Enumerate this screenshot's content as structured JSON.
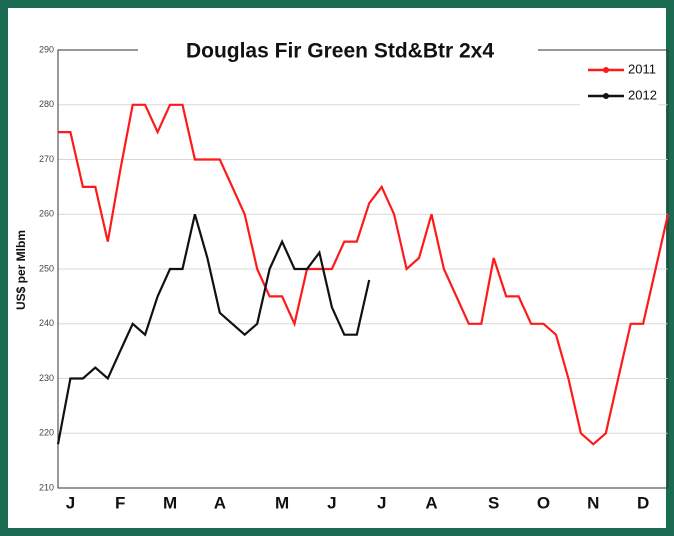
{
  "chart_data": {
    "type": "line",
    "title": "Douglas Fir Green Std&Btr 2x4",
    "y_label": "US$ per Mlbm",
    "categories": [
      null,
      "J",
      null,
      null,
      null,
      "F",
      null,
      null,
      null,
      "M",
      null,
      null,
      null,
      "A",
      null,
      null,
      null,
      null,
      "M",
      null,
      null,
      null,
      "J",
      null,
      null,
      null,
      "J",
      null,
      null,
      null,
      "A",
      null,
      null,
      null,
      null,
      "S",
      null,
      null,
      null,
      "O",
      null,
      null,
      null,
      "N",
      null,
      null,
      null,
      "D",
      null,
      null
    ],
    "series": [
      {
        "name": "2011",
        "color": "#ff1a1a",
        "values": [
          275,
          275,
          265,
          265,
          255,
          268,
          280,
          280,
          275,
          280,
          280,
          270,
          270,
          270,
          265,
          260,
          250,
          245,
          245,
          240,
          250,
          250,
          250,
          255,
          255,
          262,
          265,
          260,
          250,
          252,
          260,
          250,
          245,
          240,
          240,
          252,
          245,
          245,
          240,
          240,
          238,
          230,
          220,
          218,
          220,
          230,
          240,
          240,
          250,
          260
        ]
      },
      {
        "name": "2012",
        "color": "#111111",
        "values": [
          218,
          230,
          230,
          232,
          230,
          235,
          240,
          238,
          245,
          250,
          250,
          260,
          252,
          242,
          240,
          238,
          240,
          250,
          255,
          250,
          250,
          253,
          243,
          238,
          238,
          248,
          null,
          null,
          null,
          null,
          null,
          null,
          null,
          null,
          null,
          null,
          null,
          null,
          null,
          null,
          null,
          null,
          null,
          null,
          null,
          null,
          null,
          null,
          null,
          null
        ]
      }
    ],
    "ylim": [
      210,
      290
    ],
    "yticks": [
      210,
      220,
      230,
      240,
      250,
      260,
      270,
      280,
      290
    ],
    "grid": true
  }
}
